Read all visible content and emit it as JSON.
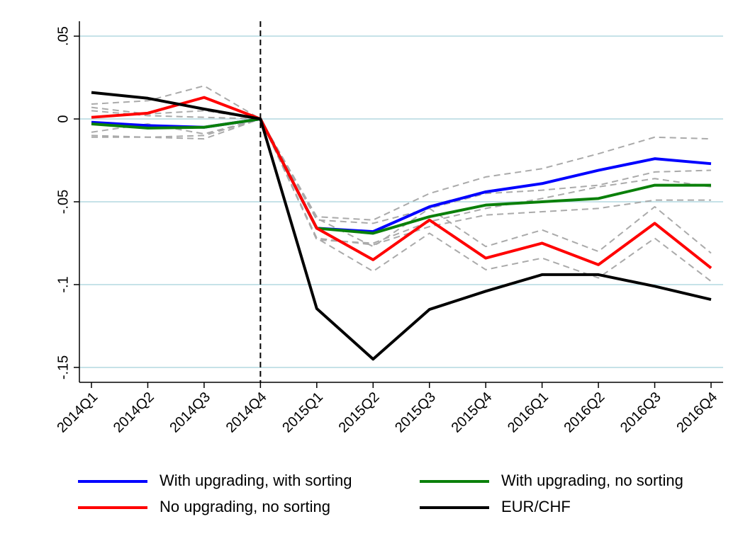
{
  "chart_data": {
    "type": "line",
    "categories": [
      "2014Q1",
      "2014Q2",
      "2014Q3",
      "2014Q4",
      "2015Q1",
      "2015Q2",
      "2015Q3",
      "2015Q4",
      "2016Q1",
      "2016Q2",
      "2016Q3",
      "2016Q4"
    ],
    "ylim": [
      -0.159,
      0.059
    ],
    "yticks": [
      {
        "value": 0.05,
        "label": ".05"
      },
      0,
      {
        "value": -0.05,
        "label": "-.05"
      },
      {
        "value": -0.1,
        "label": "-.1"
      },
      {
        "value": -0.15,
        "label": "-.15"
      }
    ],
    "grid": true,
    "reference_line": "2014Q4",
    "series": [
      {
        "color": "#aaaaaa",
        "dashed": true,
        "values": [
          0.009,
          0.011,
          0.02,
          0,
          -0.059,
          -0.061,
          -0.045,
          -0.035,
          -0.03,
          -0.021,
          -0.011,
          -0.012
        ]
      },
      {
        "color": "#aaaaaa",
        "dashed": true,
        "values": [
          -0.01,
          -0.011,
          -0.01,
          0,
          -0.073,
          -0.075,
          -0.062,
          -0.054,
          -0.048,
          -0.041,
          -0.036,
          -0.041
        ]
      },
      {
        "color": "#aaaaaa",
        "dashed": true,
        "values": [
          0.005,
          0.002,
          0.001,
          0,
          -0.061,
          -0.063,
          -0.054,
          -0.045,
          -0.043,
          -0.04,
          -0.032,
          -0.031
        ]
      },
      {
        "color": "#aaaaaa",
        "dashed": true,
        "values": [
          -0.011,
          -0.011,
          -0.012,
          0,
          -0.072,
          -0.076,
          -0.065,
          -0.058,
          -0.056,
          -0.054,
          -0.049,
          -0.049
        ]
      },
      {
        "color": "#aaaaaa",
        "dashed": true,
        "values": [
          0.007,
          0.003,
          0.005,
          0,
          -0.06,
          -0.077,
          -0.054,
          -0.077,
          -0.067,
          -0.08,
          -0.053,
          -0.081
        ]
      },
      {
        "color": "#aaaaaa",
        "dashed": true,
        "values": [
          -0.008,
          -0.003,
          -0.009,
          0,
          -0.072,
          -0.092,
          -0.069,
          -0.091,
          -0.084,
          -0.096,
          -0.072,
          -0.098
        ]
      },
      {
        "name": "With upgrading, with sorting",
        "color": "#0000ff",
        "values": [
          -0.002,
          -0.004,
          -0.005,
          0,
          -0.066,
          -0.068,
          -0.053,
          -0.044,
          -0.039,
          -0.031,
          -0.024,
          -0.027
        ]
      },
      {
        "name": "With upgrading, no sorting",
        "color": "#0a800a",
        "values": [
          -0.003,
          -0.0055,
          -0.005,
          0,
          -0.066,
          -0.069,
          -0.059,
          -0.052,
          -0.05,
          -0.048,
          -0.04,
          -0.04
        ]
      },
      {
        "name": "No upgrading, no sorting",
        "color": "#ff0000",
        "values": [
          0.001,
          0.0035,
          0.013,
          0,
          -0.066,
          -0.085,
          -0.061,
          -0.084,
          -0.075,
          -0.088,
          -0.063,
          -0.09
        ]
      },
      {
        "name": "EUR/CHF",
        "color": "#000000",
        "values": [
          0.016,
          0.0125,
          0.006,
          0,
          -0.1145,
          -0.145,
          -0.115,
          -0.104,
          -0.094,
          -0.094,
          -0.101,
          -0.109
        ]
      }
    ]
  }
}
